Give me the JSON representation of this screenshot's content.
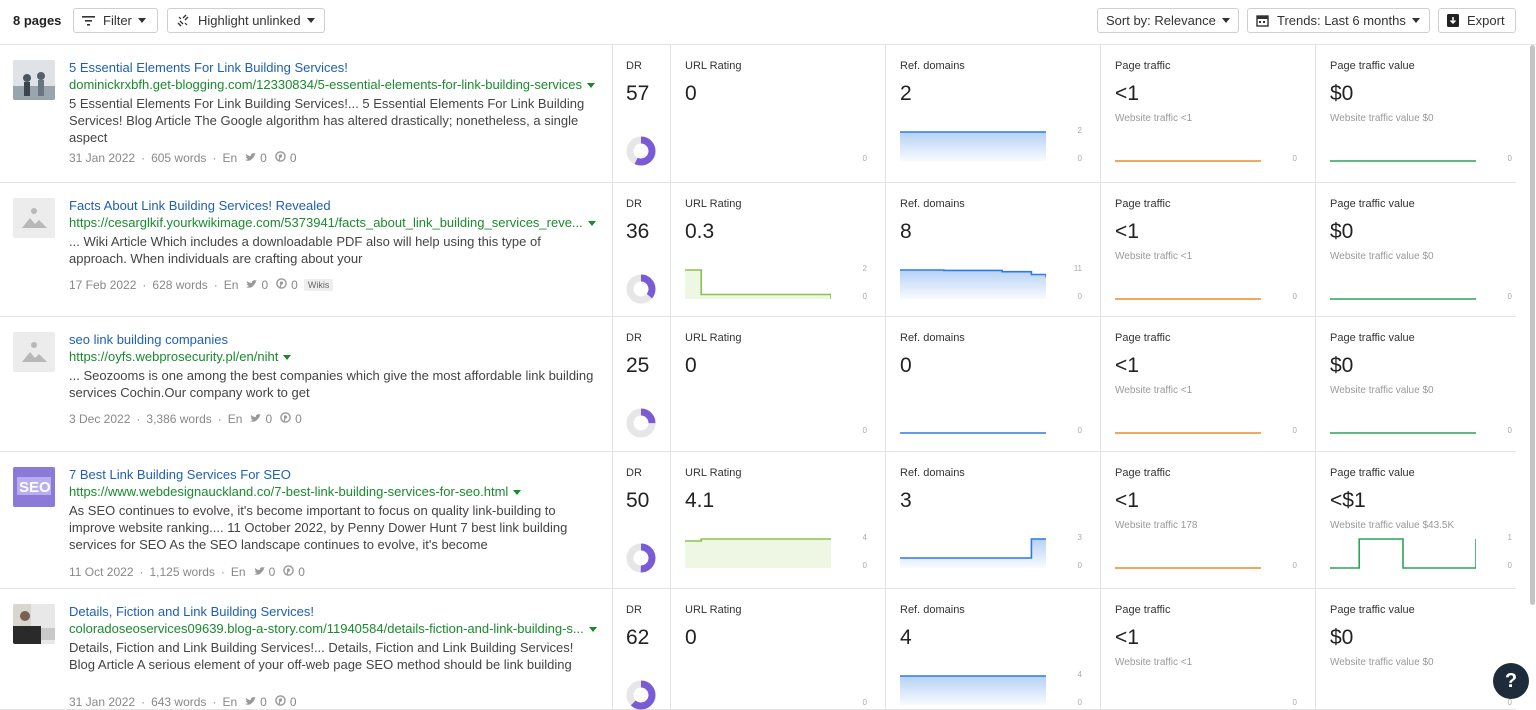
{
  "toolbar": {
    "count": "8 pages",
    "filter_label": "Filter",
    "highlight_label": "Highlight unlinked",
    "sort_label": "Sort by: Relevance",
    "trends_label": "Trends: Last 6 months",
    "export_label": "Export"
  },
  "colors": {
    "title": "#1f5fb4",
    "url": "#1a8a2e",
    "ur": "#8ac34a",
    "rd": "#2d7be5",
    "traffic": "#f08a24",
    "value": "#2aa656",
    "dr": "#7a5bd6"
  },
  "labels": {
    "dr": "DR",
    "ur": "URL Rating",
    "rd": "Ref. domains",
    "pt": "Page traffic",
    "ptv": "Page traffic value"
  },
  "rows": [
    {
      "thumb": "photo",
      "title": "5 Essential Elements For Link Building Services!",
      "url": "dominickrxbfh.get-blogging.com/12330834/5-essential-elements-for-link-building-services",
      "desc": "5 Essential Elements For Link Building Services!... 5 Essential Elements For Link Building Services! Blog Article The Google algorithm has altered drastically; nonetheless, a single aspect",
      "date": "31 Jan 2022",
      "words": "605 words",
      "lang": "En",
      "tw": "0",
      "pin": "0",
      "badge": "",
      "dr": "57",
      "dr_frac": 0.57,
      "ur": "0",
      "ur_axis": [
        "",
        "0"
      ],
      "rd": "2",
      "rd_axis": [
        "2",
        "0"
      ],
      "pt": "<1",
      "pt_sub": "Website traffic <1",
      "pt_axis": [
        "",
        "0"
      ],
      "ptv": "$0",
      "ptv_sub": "Website traffic value $0",
      "ptv_axis": [
        "",
        "0"
      ],
      "ur_series": [],
      "rd_series": [
        2,
        2,
        2,
        2,
        2,
        2,
        2,
        2
      ],
      "pt_series": [
        0,
        0,
        0,
        0,
        0,
        0,
        0,
        0
      ],
      "ptv_series": [
        0,
        0,
        0,
        0,
        0,
        0,
        0,
        0
      ]
    },
    {
      "thumb": "placeholder",
      "title": "Facts About Link Building Services! Revealed",
      "url": "https://cesarglkif.yourkwikimage.com/5373941/facts_about_link_building_services_reve...",
      "desc": "... Wiki Article Which includes a downloadable PDF also will help using this type of approach. When individuals are crafting about your",
      "date": "17 Feb 2022",
      "words": "628 words",
      "lang": "En",
      "tw": "0",
      "pin": "0",
      "badge": "Wikis",
      "dr": "36",
      "dr_frac": 0.36,
      "ur": "0.3",
      "ur_axis": [
        "2",
        "0"
      ],
      "rd": "8",
      "rd_axis": [
        "11",
        "0"
      ],
      "pt": "<1",
      "pt_sub": "Website traffic <1",
      "pt_axis": [
        "",
        "0"
      ],
      "ptv": "$0",
      "ptv_sub": "Website traffic value $0",
      "ptv_axis": [
        "",
        "0"
      ],
      "ur_series": [
        2,
        0.3,
        0.3,
        0.3,
        0.3,
        0.3,
        0.3,
        0.3,
        0.3,
        0
      ],
      "rd_series": [
        11,
        11,
        11,
        10.5,
        10.5,
        10.5,
        10.5,
        10,
        10,
        9,
        8
      ],
      "pt_series": [
        0,
        0,
        0,
        0,
        0,
        0,
        0,
        0
      ],
      "ptv_series": [
        0,
        0,
        0,
        0,
        0,
        0,
        0,
        0
      ]
    },
    {
      "thumb": "placeholder",
      "title": "seo link building companies",
      "url": "https://oyfs.webprosecurity.pl/en/niht",
      "desc": "... Seozooms is one among the best companies which give the most affordable link building services Cochin.Our company work to get",
      "date": "3 Dec 2022",
      "words": "3,386 words",
      "lang": "En",
      "tw": "0",
      "pin": "0",
      "badge": "",
      "dr": "25",
      "dr_frac": 0.25,
      "ur": "0",
      "ur_axis": [
        "",
        "0"
      ],
      "rd": "0",
      "rd_axis": [
        "",
        "0"
      ],
      "pt": "<1",
      "pt_sub": "Website traffic <1",
      "pt_axis": [
        "",
        "0"
      ],
      "ptv": "$0",
      "ptv_sub": "Website traffic value $0",
      "ptv_axis": [
        "",
        "0"
      ],
      "ur_series": [],
      "rd_series": [
        0,
        0,
        0,
        0,
        0,
        0,
        0,
        0
      ],
      "pt_series": [
        0,
        0,
        0,
        0,
        0,
        0,
        0,
        0
      ],
      "ptv_series": [
        0,
        0,
        0,
        0,
        0,
        0,
        0,
        0
      ]
    },
    {
      "thumb": "seo",
      "title": "7 Best Link Building Services For SEO",
      "url": "https://www.webdesignauckland.co/7-best-link-building-services-for-seo.html",
      "desc": "As SEO continues to evolve, it's become important to focus on quality link-building to improve website ranking.... 11 October 2022, by Penny Dower Hunt 7 best link building services for SEO As the SEO landscape continues to evolve, it's become",
      "date": "11 Oct 2022",
      "words": "1,125 words",
      "lang": "En",
      "tw": "0",
      "pin": "0",
      "badge": "",
      "dr": "50",
      "dr_frac": 0.5,
      "ur": "4.1",
      "ur_axis": [
        "4",
        "0"
      ],
      "rd": "3",
      "rd_axis": [
        "3",
        "0"
      ],
      "pt": "<1",
      "pt_sub": "Website traffic 178",
      "pt_axis": [
        "",
        "0"
      ],
      "ptv": "<$1",
      "ptv_sub": "Website traffic value $43.5K",
      "ptv_axis": [
        "1",
        "0"
      ],
      "ur_series": [
        3.6,
        4,
        4,
        4,
        4,
        4,
        4,
        4,
        4,
        4
      ],
      "rd_series": [
        1,
        1,
        1,
        1,
        1,
        1,
        1,
        1,
        1,
        3,
        3
      ],
      "pt_series": [
        0,
        0,
        0,
        0,
        0,
        0,
        0,
        0
      ],
      "ptv_series": [
        0,
        0,
        1,
        1,
        1,
        0,
        0,
        0,
        0,
        0,
        1
      ]
    },
    {
      "thumb": "person",
      "title": "Details, Fiction and Link Building Services!",
      "url": "coloradoseoservices09639.blog-a-story.com/11940584/details-fiction-and-link-building-s...",
      "desc": "Details, Fiction and Link Building Services!... Details, Fiction and Link Building Services! Blog Article A serious element of your off-web page SEO method should be link building",
      "date": "31 Jan 2022",
      "words": "643 words",
      "lang": "En",
      "tw": "0",
      "pin": "0",
      "badge": "",
      "dr": "62",
      "dr_frac": 0.62,
      "ur": "0",
      "ur_axis": [
        "",
        "0"
      ],
      "rd": "4",
      "rd_axis": [
        "4",
        "0"
      ],
      "pt": "<1",
      "pt_sub": "Website traffic <1",
      "pt_axis": [
        "",
        "0"
      ],
      "ptv": "$0",
      "ptv_sub": "Website traffic value $0",
      "ptv_axis": [
        "",
        "0"
      ],
      "ur_series": [],
      "rd_series": [
        4,
        4,
        4,
        4,
        4,
        4,
        4,
        4
      ],
      "pt_series": [],
      "ptv_series": []
    }
  ],
  "help": "?"
}
